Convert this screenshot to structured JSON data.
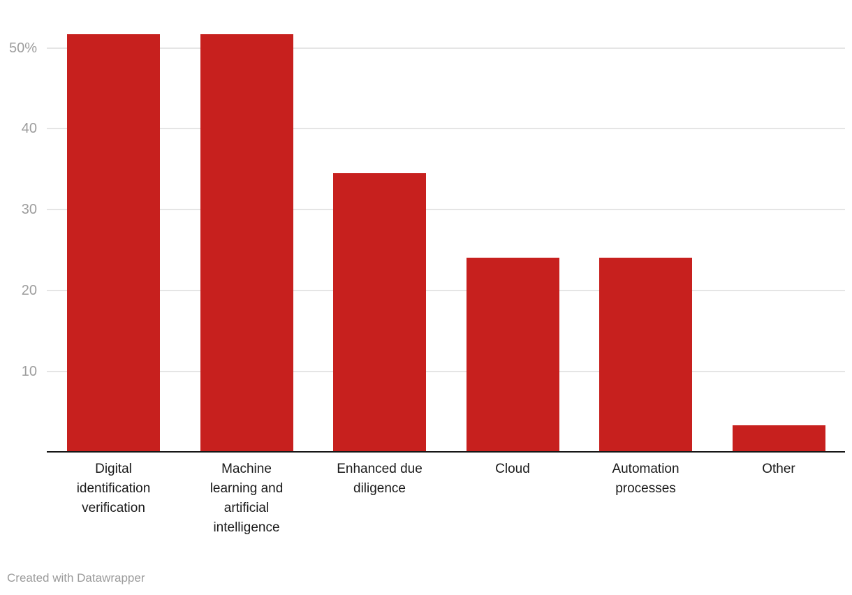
{
  "chart_data": {
    "type": "bar",
    "categories": [
      "Digital identification verification",
      "Machine learning and artificial intelligence",
      "Enhanced due diligence",
      "Cloud",
      "Automation processes",
      "Other"
    ],
    "category_lines": [
      [
        "Digital",
        "identification",
        "verification"
      ],
      [
        "Machine",
        "learning and",
        "artificial",
        "intelligence"
      ],
      [
        "Enhanced due",
        "diligence"
      ],
      [
        "Cloud"
      ],
      [
        "Automation",
        "processes"
      ],
      [
        "Other"
      ]
    ],
    "values": [
      51.7,
      51.7,
      34.5,
      24.1,
      24.1,
      3.4
    ],
    "title": "",
    "xlabel": "",
    "ylabel": "",
    "ylim": [
      0,
      55
    ],
    "yticks": [
      {
        "value": 10,
        "label": "10"
      },
      {
        "value": 20,
        "label": "20"
      },
      {
        "value": 30,
        "label": "30"
      },
      {
        "value": 40,
        "label": "40"
      },
      {
        "value": 50,
        "label": "50%"
      }
    ],
    "grid": "horizontal",
    "legend": "none",
    "colors": {
      "bar": "#c7201e",
      "gridline": "#e5e5e5",
      "axis_line": "#161616",
      "tick_label": "#9d9d9d",
      "category_label": "#1a1a1a"
    }
  },
  "footer": {
    "credit": "Created with Datawrapper"
  }
}
